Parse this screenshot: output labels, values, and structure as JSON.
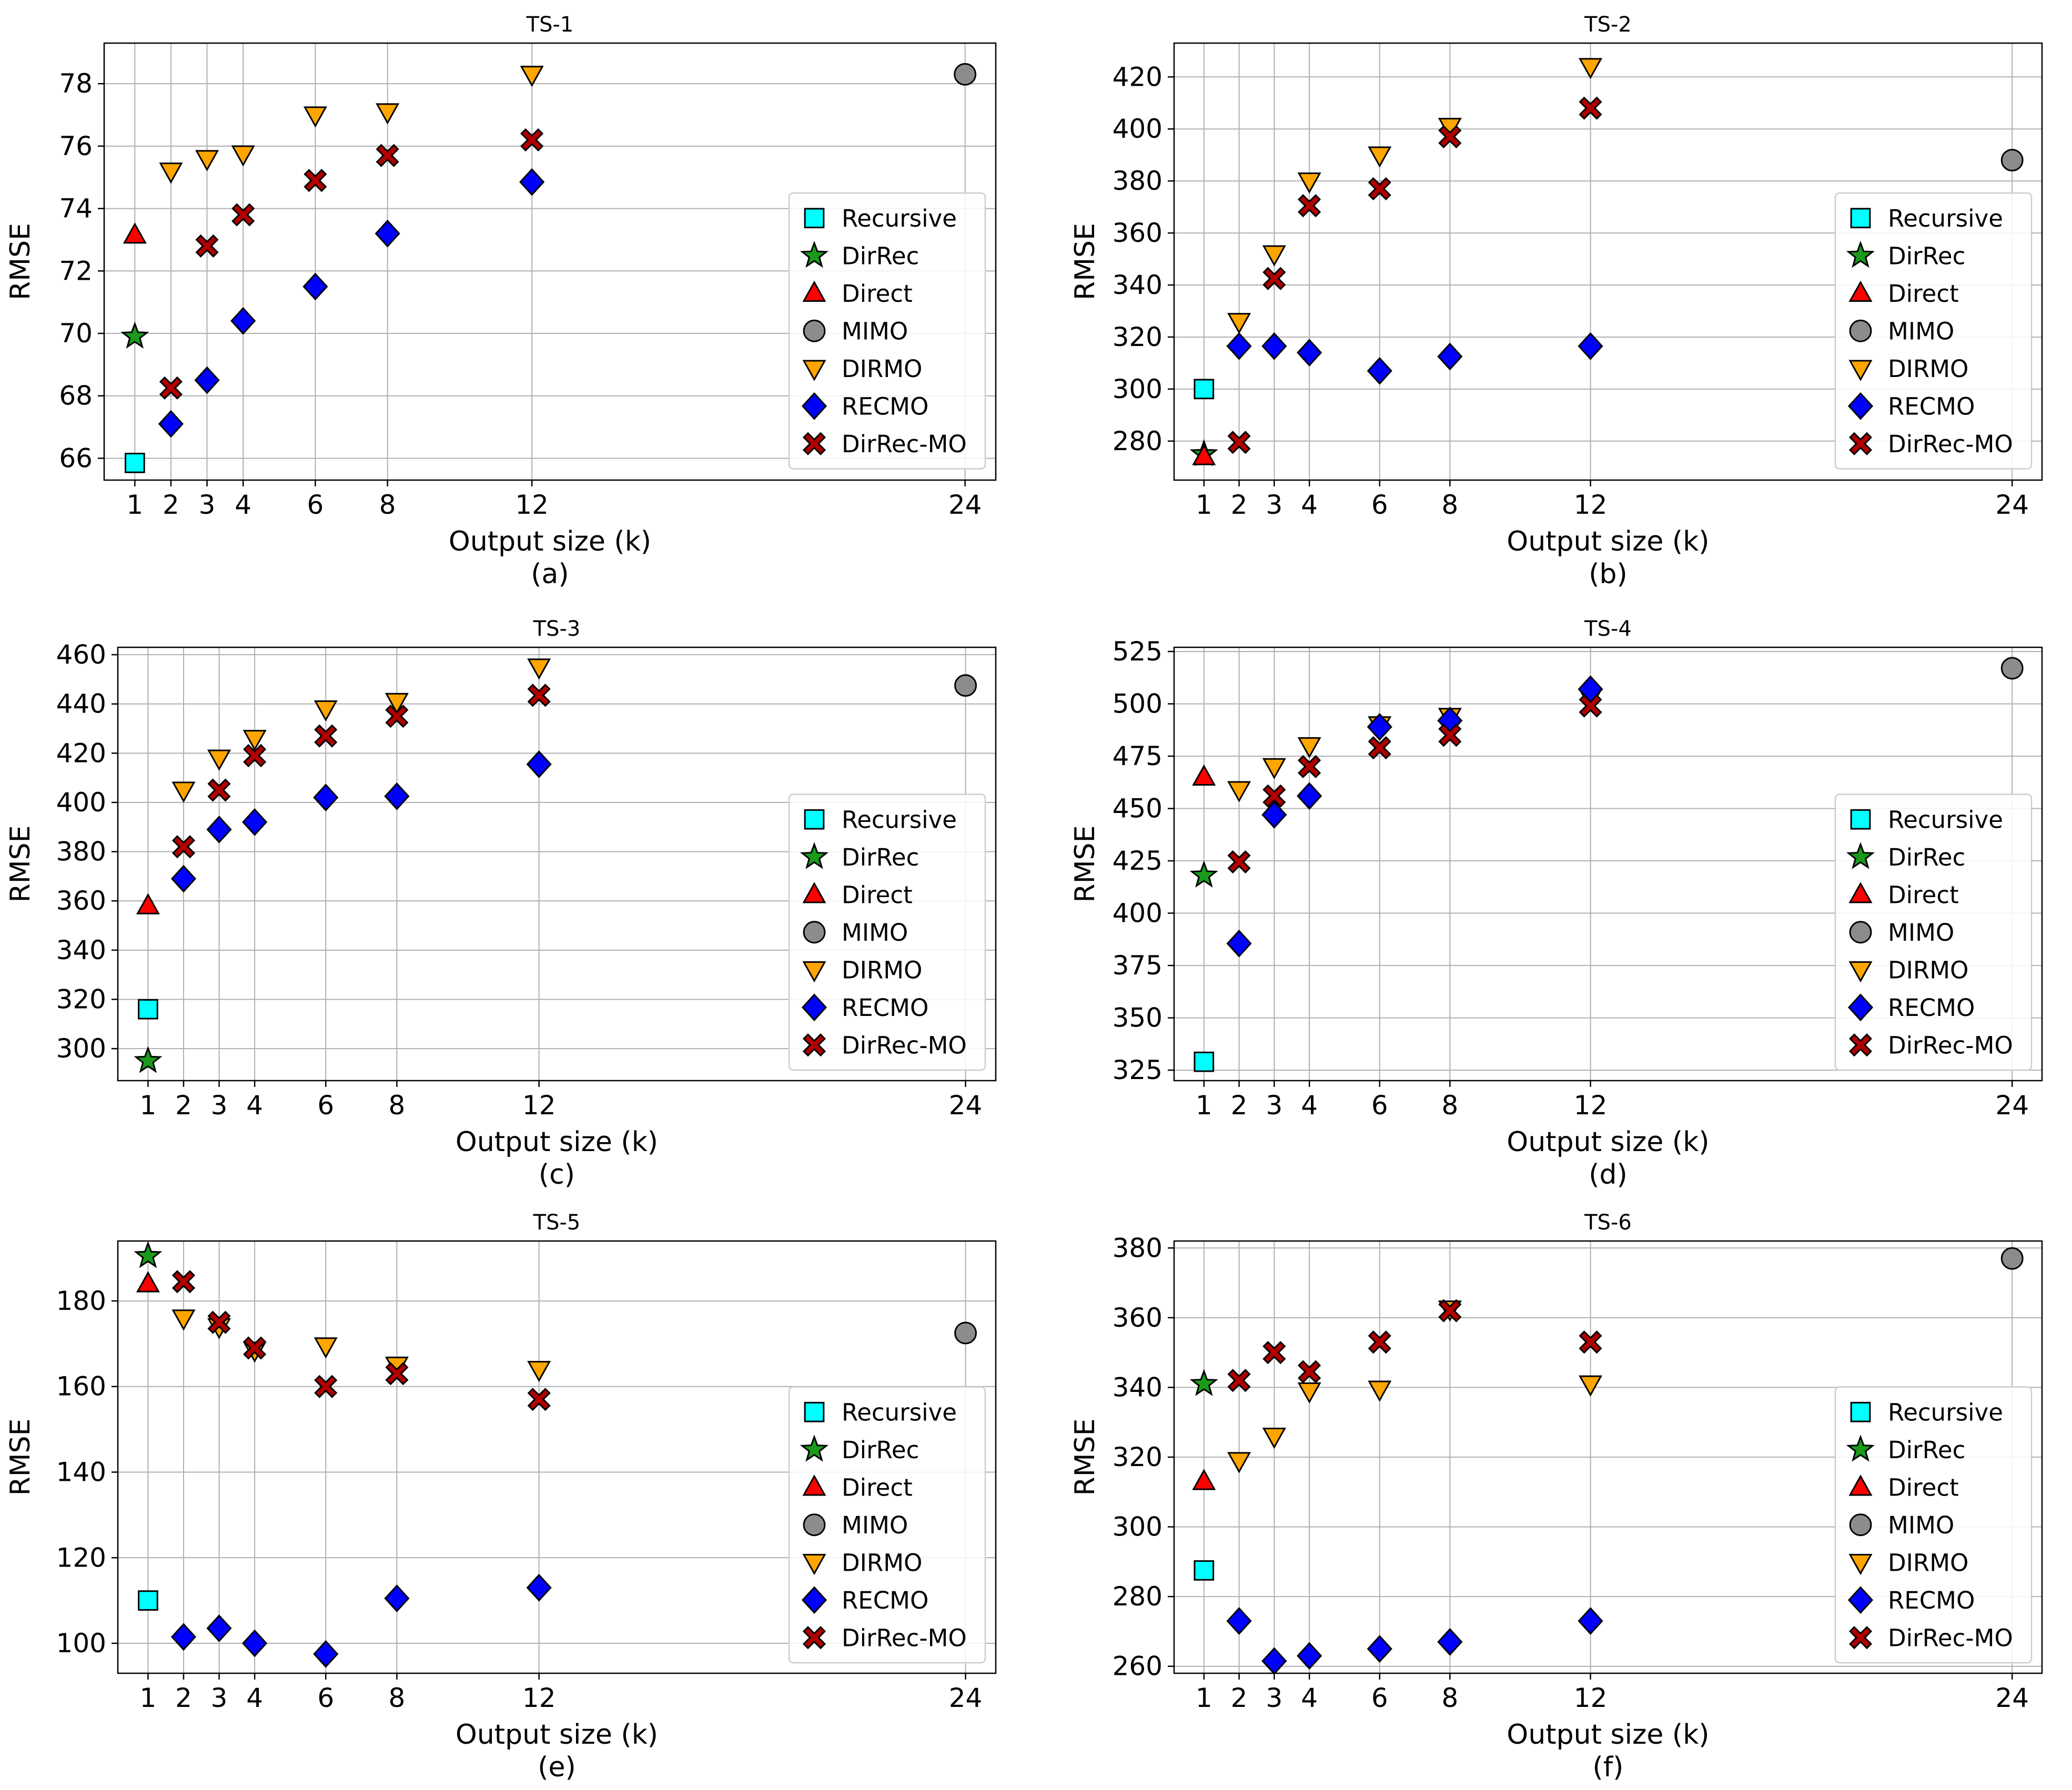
{
  "figure": {
    "y_axis_label": "RMSE",
    "x_axis_label": "Output size (k)",
    "x_ticks": [
      1,
      2,
      3,
      4,
      6,
      8,
      12,
      24
    ]
  },
  "methods": [
    {
      "name": "Recursive",
      "marker": "square",
      "color": "#00ffff"
    },
    {
      "name": "DirRec",
      "marker": "star",
      "color": "#1a9a1a"
    },
    {
      "name": "Direct",
      "marker": "triangle-up",
      "color": "#ff0000"
    },
    {
      "name": "MIMO",
      "marker": "circle",
      "color": "#8c8c8c"
    },
    {
      "name": "DIRMO",
      "marker": "triangle-down",
      "color": "#ffa500"
    },
    {
      "name": "RECMO",
      "marker": "diamond",
      "color": "#0000ff"
    },
    {
      "name": "DirRec-MO",
      "marker": "x-cross",
      "color": "#b00000"
    }
  ],
  "chart_data": [
    {
      "type": "scatter",
      "title": "TS-1",
      "caption": "(a)",
      "xlabel": "Output size (k)",
      "ylabel": "RMSE",
      "ylim": [
        65.3,
        79.3
      ],
      "yticks": [
        66,
        68,
        70,
        72,
        74,
        76,
        78
      ],
      "legend": "center-right",
      "series": [
        {
          "name": "Recursive",
          "points": [
            [
              1,
              65.85
            ]
          ]
        },
        {
          "name": "DirRec",
          "points": [
            [
              1,
              69.9
            ]
          ]
        },
        {
          "name": "Direct",
          "points": [
            [
              1,
              73.15
            ]
          ]
        },
        {
          "name": "MIMO",
          "points": [
            [
              24,
              78.3
            ]
          ]
        },
        {
          "name": "DIRMO",
          "points": [
            [
              2,
              75.2
            ],
            [
              3,
              75.6
            ],
            [
              4,
              75.75
            ],
            [
              6,
              77.0
            ],
            [
              8,
              77.1
            ],
            [
              12,
              78.3
            ]
          ]
        },
        {
          "name": "RECMO",
          "points": [
            [
              2,
              67.1
            ],
            [
              3,
              68.5
            ],
            [
              4,
              70.4
            ],
            [
              6,
              71.5
            ],
            [
              8,
              73.2
            ],
            [
              12,
              74.85
            ]
          ]
        },
        {
          "name": "DirRec-MO",
          "points": [
            [
              2,
              68.25
            ],
            [
              3,
              72.8
            ],
            [
              4,
              73.8
            ],
            [
              6,
              74.9
            ],
            [
              8,
              75.7
            ],
            [
              12,
              76.2
            ]
          ]
        }
      ]
    },
    {
      "type": "scatter",
      "title": "TS-2",
      "caption": "(b)",
      "xlabel": "Output size (k)",
      "ylabel": "RMSE",
      "ylim": [
        265,
        433
      ],
      "yticks": [
        280,
        300,
        320,
        340,
        360,
        380,
        400,
        420
      ],
      "legend": "center-right",
      "series": [
        {
          "name": "Recursive",
          "points": [
            [
              1,
              300
            ]
          ]
        },
        {
          "name": "DirRec",
          "points": [
            [
              1,
              275
            ]
          ]
        },
        {
          "name": "Direct",
          "points": [
            [
              1,
              274
            ]
          ]
        },
        {
          "name": "MIMO",
          "points": [
            [
              24,
              388
            ]
          ]
        },
        {
          "name": "DIRMO",
          "points": [
            [
              2,
              326
            ],
            [
              3,
              352
            ],
            [
              4,
              380
            ],
            [
              6,
              390
            ],
            [
              8,
              401
            ],
            [
              12,
              424
            ]
          ]
        },
        {
          "name": "RECMO",
          "points": [
            [
              2,
              316.5
            ],
            [
              3,
              316.5
            ],
            [
              4,
              314
            ],
            [
              6,
              307
            ],
            [
              8,
              312.5
            ],
            [
              12,
              316.5
            ]
          ]
        },
        {
          "name": "DirRec-MO",
          "points": [
            [
              2,
              279.5
            ],
            [
              3,
              342.5
            ],
            [
              4,
              370.5
            ],
            [
              6,
              377
            ],
            [
              8,
              397
            ],
            [
              12,
              408
            ]
          ]
        }
      ]
    },
    {
      "type": "scatter",
      "title": "TS-3",
      "caption": "(c)",
      "xlabel": "Output size (k)",
      "ylabel": "RMSE",
      "ylim": [
        287,
        463
      ],
      "yticks": [
        300,
        320,
        340,
        360,
        380,
        400,
        420,
        440,
        460
      ],
      "legend": "bottom-right",
      "series": [
        {
          "name": "Recursive",
          "points": [
            [
              1,
              316
            ]
          ]
        },
        {
          "name": "DirRec",
          "points": [
            [
              1,
              295
            ]
          ]
        },
        {
          "name": "Direct",
          "points": [
            [
              1,
              358
            ]
          ]
        },
        {
          "name": "MIMO",
          "points": [
            [
              24,
              447.5
            ]
          ]
        },
        {
          "name": "DIRMO",
          "points": [
            [
              2,
              405
            ],
            [
              3,
              418
            ],
            [
              4,
              426
            ],
            [
              6,
              438
            ],
            [
              8,
              441
            ],
            [
              12,
              455
            ]
          ]
        },
        {
          "name": "RECMO",
          "points": [
            [
              2,
              369
            ],
            [
              3,
              389
            ],
            [
              4,
              392
            ],
            [
              6,
              402
            ],
            [
              8,
              402.5
            ],
            [
              12,
              415.5
            ]
          ]
        },
        {
          "name": "DirRec-MO",
          "points": [
            [
              2,
              382
            ],
            [
              3,
              405
            ],
            [
              4,
              419
            ],
            [
              6,
              427
            ],
            [
              8,
              435
            ],
            [
              12,
              443.5
            ]
          ]
        }
      ]
    },
    {
      "type": "scatter",
      "title": "TS-4",
      "caption": "(d)",
      "xlabel": "Output size (k)",
      "ylabel": "RMSE",
      "ylim": [
        320,
        527
      ],
      "yticks": [
        325,
        350,
        375,
        400,
        425,
        450,
        475,
        500,
        525
      ],
      "legend": "bottom-right",
      "series": [
        {
          "name": "Recursive",
          "points": [
            [
              1,
              329
            ]
          ]
        },
        {
          "name": "DirRec",
          "points": [
            [
              1,
              418
            ]
          ]
        },
        {
          "name": "Direct",
          "points": [
            [
              1,
              465
            ]
          ]
        },
        {
          "name": "MIMO",
          "points": [
            [
              24,
              517
            ]
          ]
        },
        {
          "name": "DIRMO",
          "points": [
            [
              2,
              459
            ],
            [
              3,
              470
            ],
            [
              4,
              480
            ],
            [
              6,
              490
            ],
            [
              8,
              494
            ],
            [
              12,
              503
            ]
          ]
        },
        {
          "name": "RECMO",
          "points": [
            [
              2,
              385.5
            ],
            [
              3,
              447
            ],
            [
              4,
              456
            ],
            [
              6,
              489
            ],
            [
              8,
              492
            ],
            [
              12,
              507
            ]
          ]
        },
        {
          "name": "DirRec-MO",
          "points": [
            [
              2,
              424.5
            ],
            [
              3,
              456
            ],
            [
              4,
              470
            ],
            [
              6,
              479
            ],
            [
              8,
              485
            ],
            [
              12,
              499
            ]
          ]
        }
      ]
    },
    {
      "type": "scatter",
      "title": "TS-5",
      "caption": "(e)",
      "xlabel": "Output size (k)",
      "ylabel": "RMSE",
      "ylim": [
        93,
        194
      ],
      "yticks": [
        100,
        120,
        140,
        160,
        180
      ],
      "legend": "bottom-right",
      "series": [
        {
          "name": "Recursive",
          "points": [
            [
              1,
              110
            ]
          ]
        },
        {
          "name": "DirRec",
          "points": [
            [
              1,
              190.5
            ]
          ]
        },
        {
          "name": "Direct",
          "points": [
            [
              1,
              184
            ]
          ]
        },
        {
          "name": "MIMO",
          "points": [
            [
              24,
              172.5
            ]
          ]
        },
        {
          "name": "DIRMO",
          "points": [
            [
              2,
              176
            ],
            [
              3,
              174
            ],
            [
              4,
              168.5
            ],
            [
              6,
              169.5
            ],
            [
              8,
              165
            ],
            [
              12,
              164
            ]
          ]
        },
        {
          "name": "RECMO",
          "points": [
            [
              2,
              101.5
            ],
            [
              3,
              103.5
            ],
            [
              4,
              100
            ],
            [
              6,
              97.5
            ],
            [
              8,
              110.5
            ],
            [
              12,
              113
            ]
          ]
        },
        {
          "name": "DirRec-MO",
          "points": [
            [
              2,
              184.5
            ],
            [
              3,
              175
            ],
            [
              4,
              169
            ],
            [
              6,
              160
            ],
            [
              8,
              163
            ],
            [
              12,
              157
            ]
          ]
        }
      ]
    },
    {
      "type": "scatter",
      "title": "TS-6",
      "caption": "(f)",
      "xlabel": "Output size (k)",
      "ylabel": "RMSE",
      "ylim": [
        258,
        382
      ],
      "yticks": [
        260,
        280,
        300,
        320,
        340,
        360,
        380
      ],
      "legend": "bottom-right",
      "series": [
        {
          "name": "Recursive",
          "points": [
            [
              1,
              287.5
            ]
          ]
        },
        {
          "name": "DirRec",
          "points": [
            [
              1,
              341
            ]
          ]
        },
        {
          "name": "Direct",
          "points": [
            [
              1,
              313
            ]
          ]
        },
        {
          "name": "MIMO",
          "points": [
            [
              24,
              377
            ]
          ]
        },
        {
          "name": "DIRMO",
          "points": [
            [
              2,
              319
            ],
            [
              3,
              326
            ],
            [
              4,
              339
            ],
            [
              6,
              339.5
            ],
            [
              8,
              362.5
            ],
            [
              12,
              341
            ]
          ]
        },
        {
          "name": "RECMO",
          "points": [
            [
              2,
              273
            ],
            [
              3,
              261.5
            ],
            [
              4,
              263
            ],
            [
              6,
              265
            ],
            [
              8,
              267
            ],
            [
              12,
              273
            ]
          ]
        },
        {
          "name": "DirRec-MO",
          "points": [
            [
              2,
              342
            ],
            [
              3,
              350
            ],
            [
              4,
              344.5
            ],
            [
              6,
              353
            ],
            [
              8,
              362
            ],
            [
              12,
              353
            ]
          ]
        }
      ]
    }
  ]
}
